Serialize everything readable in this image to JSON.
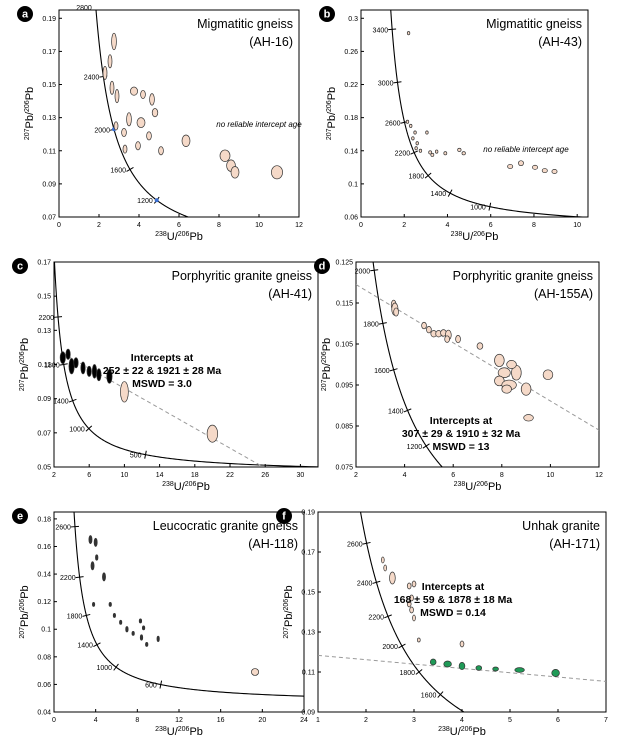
{
  "chart_data": [
    {
      "panel": "a",
      "type": "scatter",
      "title": "Migmatitic gneiss",
      "sample": "(AH-16)",
      "xlabel": "238U/206Pb",
      "ylabel": "207Pb/206Pb",
      "xlim": [
        0,
        12
      ],
      "ylim": [
        0.07,
        0.195
      ],
      "xticks": [
        0,
        2,
        4,
        6,
        8,
        10,
        12
      ],
      "yticks": [
        0.07,
        0.09,
        0.11,
        0.13,
        0.15,
        0.17,
        0.19
      ],
      "annotation": "no reliable intercept age",
      "concordia_ticks": [
        {
          "age": 2800,
          "label": "2800"
        },
        {
          "age": 2400,
          "label": "2400"
        },
        {
          "age": 2000,
          "label": "2000"
        },
        {
          "age": 1600,
          "label": "1600"
        },
        {
          "age": 1200,
          "label": "1200"
        }
      ],
      "points": [
        {
          "x": 2.75,
          "y": 0.176,
          "rx": 0.12,
          "ry": 0.005
        },
        {
          "x": 2.55,
          "y": 0.164,
          "rx": 0.1,
          "ry": 0.004
        },
        {
          "x": 2.3,
          "y": 0.157,
          "rx": 0.1,
          "ry": 0.004
        },
        {
          "x": 2.65,
          "y": 0.148,
          "rx": 0.1,
          "ry": 0.004
        },
        {
          "x": 2.9,
          "y": 0.143,
          "rx": 0.1,
          "ry": 0.004
        },
        {
          "x": 3.75,
          "y": 0.146,
          "rx": 0.18,
          "ry": 0.0025
        },
        {
          "x": 4.2,
          "y": 0.144,
          "rx": 0.12,
          "ry": 0.0025
        },
        {
          "x": 4.65,
          "y": 0.141,
          "rx": 0.12,
          "ry": 0.0035
        },
        {
          "x": 4.8,
          "y": 0.133,
          "rx": 0.14,
          "ry": 0.0025
        },
        {
          "x": 3.5,
          "y": 0.129,
          "rx": 0.12,
          "ry": 0.004
        },
        {
          "x": 4.1,
          "y": 0.127,
          "rx": 0.2,
          "ry": 0.003
        },
        {
          "x": 2.85,
          "y": 0.125,
          "rx": 0.1,
          "ry": 0.0025
        },
        {
          "x": 3.25,
          "y": 0.121,
          "rx": 0.12,
          "ry": 0.0025
        },
        {
          "x": 4.5,
          "y": 0.119,
          "rx": 0.12,
          "ry": 0.0025
        },
        {
          "x": 3.95,
          "y": 0.113,
          "rx": 0.12,
          "ry": 0.0025
        },
        {
          "x": 5.1,
          "y": 0.11,
          "rx": 0.12,
          "ry": 0.0025
        },
        {
          "x": 3.3,
          "y": 0.111,
          "rx": 0.1,
          "ry": 0.0025
        },
        {
          "x": 6.35,
          "y": 0.116,
          "rx": 0.2,
          "ry": 0.0035
        },
        {
          "x": 8.3,
          "y": 0.107,
          "rx": 0.25,
          "ry": 0.0035
        },
        {
          "x": 8.6,
          "y": 0.101,
          "rx": 0.22,
          "ry": 0.0035
        },
        {
          "x": 8.8,
          "y": 0.097,
          "rx": 0.2,
          "ry": 0.0035
        },
        {
          "x": 10.9,
          "y": 0.097,
          "rx": 0.28,
          "ry": 0.004
        }
      ]
    },
    {
      "panel": "b",
      "type": "scatter",
      "title": "Migmatitic gneiss",
      "sample": "(AH-43)",
      "xlabel": "238U/206Pb",
      "ylabel": "207Pb/206Pb",
      "xlim": [
        0,
        10.5
      ],
      "ylim": [
        0.06,
        0.31
      ],
      "xticks": [
        0,
        2,
        4,
        6,
        8,
        10
      ],
      "yticks": [
        0.06,
        0.1,
        0.14,
        0.18,
        0.22,
        0.26,
        0.3
      ],
      "annotation": "no reliable intercept age",
      "concordia_ticks": [
        {
          "age": 3400,
          "label": "3400"
        },
        {
          "age": 3000,
          "label": "3000"
        },
        {
          "age": 2600,
          "label": "2600"
        },
        {
          "age": 2200,
          "label": "2200"
        },
        {
          "age": 1800,
          "label": "1800"
        },
        {
          "age": 1400,
          "label": "1400"
        },
        {
          "age": 1000,
          "label": "1000"
        }
      ],
      "points": [
        {
          "x": 2.2,
          "y": 0.282,
          "rx": 0.06,
          "ry": 0.002
        },
        {
          "x": 2.15,
          "y": 0.175,
          "rx": 0.06,
          "ry": 0.002
        },
        {
          "x": 2.3,
          "y": 0.17,
          "rx": 0.06,
          "ry": 0.002
        },
        {
          "x": 2.5,
          "y": 0.162,
          "rx": 0.06,
          "ry": 0.002
        },
        {
          "x": 2.4,
          "y": 0.155,
          "rx": 0.06,
          "ry": 0.002
        },
        {
          "x": 2.6,
          "y": 0.149,
          "rx": 0.06,
          "ry": 0.002
        },
        {
          "x": 2.55,
          "y": 0.143,
          "rx": 0.06,
          "ry": 0.002
        },
        {
          "x": 2.75,
          "y": 0.14,
          "rx": 0.06,
          "ry": 0.002
        },
        {
          "x": 3.05,
          "y": 0.162,
          "rx": 0.06,
          "ry": 0.002
        },
        {
          "x": 3.2,
          "y": 0.138,
          "rx": 0.07,
          "ry": 0.002
        },
        {
          "x": 3.3,
          "y": 0.135,
          "rx": 0.07,
          "ry": 0.002
        },
        {
          "x": 3.5,
          "y": 0.139,
          "rx": 0.06,
          "ry": 0.002
        },
        {
          "x": 3.9,
          "y": 0.137,
          "rx": 0.07,
          "ry": 0.002
        },
        {
          "x": 4.55,
          "y": 0.141,
          "rx": 0.08,
          "ry": 0.002
        },
        {
          "x": 4.75,
          "y": 0.137,
          "rx": 0.08,
          "ry": 0.002
        },
        {
          "x": 6.9,
          "y": 0.121,
          "rx": 0.12,
          "ry": 0.0025
        },
        {
          "x": 7.4,
          "y": 0.125,
          "rx": 0.12,
          "ry": 0.003
        },
        {
          "x": 8.05,
          "y": 0.12,
          "rx": 0.12,
          "ry": 0.0025
        },
        {
          "x": 8.5,
          "y": 0.116,
          "rx": 0.12,
          "ry": 0.0025
        },
        {
          "x": 8.95,
          "y": 0.115,
          "rx": 0.12,
          "ry": 0.0025
        }
      ]
    },
    {
      "panel": "c",
      "type": "scatter",
      "title": "Porphyritic granite gneiss",
      "sample": "(AH-41)",
      "xlabel": "238U/206Pb",
      "ylabel": "207Pb/206Pb",
      "xlim": [
        2,
        32
      ],
      "ylim": [
        0.05,
        0.17
      ],
      "xticks": [
        2,
        6,
        10,
        14,
        18,
        22,
        26,
        30
      ],
      "yticks": [
        0.05,
        0.07,
        0.09,
        0.11,
        0.13,
        0.15,
        0.17
      ],
      "annotation_lines": [
        "Intercepts at",
        "252 ± 22 & 1921 ± 28 Ma",
        "MSWD = 3.0"
      ],
      "discordia": {
        "x1": 2.9,
        "y1": 0.1168,
        "x2": 25.5,
        "y2": 0.0508
      },
      "concordia_ticks": [
        {
          "age": 2200,
          "label": "2200"
        },
        {
          "age": 1800,
          "label": "1800"
        },
        {
          "age": 1400,
          "label": "1400"
        },
        {
          "age": 1000,
          "label": "1000"
        },
        {
          "age": 500,
          "label": "500"
        }
      ],
      "points": [
        {
          "x": 3.0,
          "y": 0.114,
          "rx": 0.3,
          "ry": 0.0035,
          "fill": "#000000"
        },
        {
          "x": 3.6,
          "y": 0.116,
          "rx": 0.25,
          "ry": 0.003,
          "fill": "#000000"
        },
        {
          "x": 4.0,
          "y": 0.109,
          "rx": 0.3,
          "ry": 0.0045,
          "fill": "#000000"
        },
        {
          "x": 4.5,
          "y": 0.111,
          "rx": 0.25,
          "ry": 0.003,
          "fill": "#000000"
        },
        {
          "x": 5.3,
          "y": 0.108,
          "rx": 0.25,
          "ry": 0.0035,
          "fill": "#000000"
        },
        {
          "x": 6.0,
          "y": 0.106,
          "rx": 0.25,
          "ry": 0.003,
          "fill": "#000000"
        },
        {
          "x": 6.6,
          "y": 0.106,
          "rx": 0.25,
          "ry": 0.004,
          "fill": "#000000"
        },
        {
          "x": 7.1,
          "y": 0.104,
          "rx": 0.25,
          "ry": 0.0035,
          "fill": "#000000"
        },
        {
          "x": 8.3,
          "y": 0.103,
          "rx": 0.3,
          "ry": 0.004,
          "fill": "#000000"
        },
        {
          "x": 10.0,
          "y": 0.094,
          "rx": 0.45,
          "ry": 0.006
        },
        {
          "x": 20.0,
          "y": 0.0695,
          "rx": 0.6,
          "ry": 0.005
        }
      ]
    },
    {
      "panel": "d",
      "type": "scatter",
      "title": "Porphyritic granite gneiss",
      "sample": "(AH-155A)",
      "xlabel": "238U/206Pb",
      "ylabel": "207Pb/206Pb",
      "xlim": [
        2,
        12
      ],
      "ylim": [
        0.075,
        0.125
      ],
      "xticks": [
        2,
        4,
        6,
        8,
        10,
        12
      ],
      "yticks": [
        0.075,
        0.085,
        0.095,
        0.105,
        0.115,
        0.125
      ],
      "annotation_lines": [
        "Intercepts at",
        "307 ± 29 & 1910 ± 32 Ma",
        "MSWD = 13"
      ],
      "discordia": {
        "x1": 2.0,
        "y1": 0.1195,
        "x2": 12.0,
        "y2": 0.084
      },
      "concordia_ticks": [
        {
          "age": 2000,
          "label": "2000"
        },
        {
          "age": 1800,
          "label": "1800"
        },
        {
          "age": 1600,
          "label": "1600"
        },
        {
          "age": 1400,
          "label": "1400"
        },
        {
          "age": 1200,
          "label": "1200"
        }
      ],
      "points": [
        {
          "x": 3.55,
          "y": 0.1145,
          "rx": 0.1,
          "ry": 0.0012
        },
        {
          "x": 3.6,
          "y": 0.1135,
          "rx": 0.13,
          "ry": 0.0015
        },
        {
          "x": 3.65,
          "y": 0.1128,
          "rx": 0.1,
          "ry": 0.001
        },
        {
          "x": 4.8,
          "y": 0.1095,
          "rx": 0.1,
          "ry": 0.0008
        },
        {
          "x": 5.0,
          "y": 0.1085,
          "rx": 0.1,
          "ry": 0.0008
        },
        {
          "x": 5.2,
          "y": 0.1075,
          "rx": 0.12,
          "ry": 0.0008
        },
        {
          "x": 5.4,
          "y": 0.1075,
          "rx": 0.12,
          "ry": 0.0008
        },
        {
          "x": 5.6,
          "y": 0.1077,
          "rx": 0.12,
          "ry": 0.0008
        },
        {
          "x": 5.8,
          "y": 0.1072,
          "rx": 0.12,
          "ry": 0.0012
        },
        {
          "x": 5.75,
          "y": 0.1062,
          "rx": 0.1,
          "ry": 0.0008
        },
        {
          "x": 6.2,
          "y": 0.1062,
          "rx": 0.1,
          "ry": 0.0009
        },
        {
          "x": 7.1,
          "y": 0.1045,
          "rx": 0.12,
          "ry": 0.0008
        },
        {
          "x": 7.9,
          "y": 0.101,
          "rx": 0.2,
          "ry": 0.0015
        },
        {
          "x": 8.1,
          "y": 0.098,
          "rx": 0.25,
          "ry": 0.0012
        },
        {
          "x": 7.9,
          "y": 0.096,
          "rx": 0.2,
          "ry": 0.0012
        },
        {
          "x": 8.3,
          "y": 0.095,
          "rx": 0.3,
          "ry": 0.0012
        },
        {
          "x": 8.6,
          "y": 0.098,
          "rx": 0.2,
          "ry": 0.0018
        },
        {
          "x": 8.4,
          "y": 0.1,
          "rx": 0.2,
          "ry": 0.001
        },
        {
          "x": 8.2,
          "y": 0.094,
          "rx": 0.2,
          "ry": 0.001
        },
        {
          "x": 9.0,
          "y": 0.094,
          "rx": 0.2,
          "ry": 0.0015
        },
        {
          "x": 9.9,
          "y": 0.0975,
          "rx": 0.2,
          "ry": 0.0012
        },
        {
          "x": 9.1,
          "y": 0.087,
          "rx": 0.2,
          "ry": 0.0008
        }
      ]
    },
    {
      "panel": "e",
      "type": "scatter",
      "title": "Leucocratic granite gneiss",
      "sample": "(AH-118)",
      "xlabel": "238U/206Pb",
      "ylabel": "207Pb/206Pb",
      "xlim": [
        0,
        24
      ],
      "ylim": [
        0.04,
        0.185
      ],
      "xticks": [
        0,
        4,
        8,
        12,
        16,
        20,
        24
      ],
      "yticks": [
        0.04,
        0.06,
        0.08,
        0.1,
        0.12,
        0.14,
        0.16,
        0.18
      ],
      "concordia_ticks": [
        {
          "age": 2600,
          "label": "2600"
        },
        {
          "age": 2200,
          "label": "2200"
        },
        {
          "age": 1800,
          "label": "1800"
        },
        {
          "age": 1400,
          "label": "1400"
        },
        {
          "age": 1000,
          "label": "1000"
        },
        {
          "age": 600,
          "label": "600"
        }
      ],
      "points": [
        {
          "x": 3.5,
          "y": 0.165,
          "rx": 0.15,
          "ry": 0.003,
          "fill": "#333333"
        },
        {
          "x": 4.0,
          "y": 0.163,
          "rx": 0.15,
          "ry": 0.003,
          "fill": "#333333"
        },
        {
          "x": 4.1,
          "y": 0.152,
          "rx": 0.12,
          "ry": 0.002,
          "fill": "#333333"
        },
        {
          "x": 3.7,
          "y": 0.146,
          "rx": 0.15,
          "ry": 0.003,
          "fill": "#333333"
        },
        {
          "x": 4.8,
          "y": 0.138,
          "rx": 0.15,
          "ry": 0.003,
          "fill": "#333333"
        },
        {
          "x": 3.8,
          "y": 0.118,
          "rx": 0.1,
          "ry": 0.0015,
          "fill": "#333333"
        },
        {
          "x": 5.4,
          "y": 0.118,
          "rx": 0.12,
          "ry": 0.0015,
          "fill": "#333333"
        },
        {
          "x": 5.8,
          "y": 0.11,
          "rx": 0.1,
          "ry": 0.0015,
          "fill": "#333333"
        },
        {
          "x": 6.4,
          "y": 0.105,
          "rx": 0.1,
          "ry": 0.0015,
          "fill": "#333333"
        },
        {
          "x": 7.0,
          "y": 0.1,
          "rx": 0.12,
          "ry": 0.002,
          "fill": "#333333"
        },
        {
          "x": 7.6,
          "y": 0.097,
          "rx": 0.12,
          "ry": 0.0015,
          "fill": "#333333"
        },
        {
          "x": 8.3,
          "y": 0.106,
          "rx": 0.12,
          "ry": 0.0015,
          "fill": "#333333"
        },
        {
          "x": 8.6,
          "y": 0.101,
          "rx": 0.12,
          "ry": 0.0015,
          "fill": "#333333"
        },
        {
          "x": 8.4,
          "y": 0.094,
          "rx": 0.12,
          "ry": 0.002,
          "fill": "#333333"
        },
        {
          "x": 8.9,
          "y": 0.089,
          "rx": 0.12,
          "ry": 0.0015,
          "fill": "#333333"
        },
        {
          "x": 10.0,
          "y": 0.093,
          "rx": 0.1,
          "ry": 0.002,
          "fill": "#333333"
        },
        {
          "x": 19.3,
          "y": 0.069,
          "rx": 0.35,
          "ry": 0.0025
        }
      ]
    },
    {
      "panel": "f",
      "type": "scatter",
      "title": "Unhak granite",
      "sample": "(AH-171)",
      "xlabel": "238U/206Pb",
      "ylabel": "207Pb/206Pb",
      "xlim": [
        1,
        7
      ],
      "ylim": [
        0.09,
        0.19
      ],
      "xticks": [
        1,
        2,
        3,
        4,
        5,
        6,
        7
      ],
      "yticks": [
        0.09,
        0.11,
        0.13,
        0.15,
        0.17,
        0.19
      ],
      "annotation_lines": [
        "Intercepts at",
        "168 ± 59 & 1878 ± 18 Ma",
        "MSWD = 0.14"
      ],
      "discordia": {
        "x1": 1.0,
        "y1": 0.1183,
        "x2": 7.0,
        "y2": 0.1053
      },
      "concordia_ticks": [
        {
          "age": 2600,
          "label": "2600"
        },
        {
          "age": 2400,
          "label": "2400"
        },
        {
          "age": 2200,
          "label": "2200"
        },
        {
          "age": 2000,
          "label": "2000"
        },
        {
          "age": 1800,
          "label": "1800"
        },
        {
          "age": 1600,
          "label": "1600"
        }
      ],
      "points": [
        {
          "x": 2.35,
          "y": 0.166,
          "rx": 0.03,
          "ry": 0.0015
        },
        {
          "x": 2.4,
          "y": 0.162,
          "rx": 0.03,
          "ry": 0.0015
        },
        {
          "x": 2.55,
          "y": 0.157,
          "rx": 0.06,
          "ry": 0.003
        },
        {
          "x": 2.9,
          "y": 0.153,
          "rx": 0.04,
          "ry": 0.0015
        },
        {
          "x": 3.0,
          "y": 0.154,
          "rx": 0.04,
          "ry": 0.0015
        },
        {
          "x": 2.95,
          "y": 0.147,
          "rx": 0.04,
          "ry": 0.0015
        },
        {
          "x": 2.9,
          "y": 0.144,
          "rx": 0.04,
          "ry": 0.0015
        },
        {
          "x": 2.95,
          "y": 0.141,
          "rx": 0.04,
          "ry": 0.0015
        },
        {
          "x": 3.0,
          "y": 0.137,
          "rx": 0.03,
          "ry": 0.0015
        },
        {
          "x": 3.1,
          "y": 0.126,
          "rx": 0.03,
          "ry": 0.001
        },
        {
          "x": 4.0,
          "y": 0.124,
          "rx": 0.04,
          "ry": 0.0015
        },
        {
          "x": 3.4,
          "y": 0.115,
          "rx": 0.06,
          "ry": 0.0015,
          "fill": "#1f9a57"
        },
        {
          "x": 3.7,
          "y": 0.114,
          "rx": 0.08,
          "ry": 0.0015,
          "fill": "#1f9a57"
        },
        {
          "x": 4.0,
          "y": 0.113,
          "rx": 0.06,
          "ry": 0.0018,
          "fill": "#1f9a57"
        },
        {
          "x": 4.35,
          "y": 0.112,
          "rx": 0.06,
          "ry": 0.0012,
          "fill": "#1f9a57"
        },
        {
          "x": 4.7,
          "y": 0.1115,
          "rx": 0.06,
          "ry": 0.001,
          "fill": "#1f9a57"
        },
        {
          "x": 5.2,
          "y": 0.111,
          "rx": 0.1,
          "ry": 0.0012,
          "fill": "#1f9a57"
        },
        {
          "x": 5.95,
          "y": 0.1095,
          "rx": 0.08,
          "ry": 0.0018,
          "fill": "#1f9a57"
        }
      ]
    }
  ],
  "colors": {
    "ellipse_fill": "#f5d9c8",
    "ellipse_stroke": "#333333",
    "concordia": "#000000",
    "discordia": "#9a9a9a",
    "marker_blue": "#3a6fd1"
  }
}
